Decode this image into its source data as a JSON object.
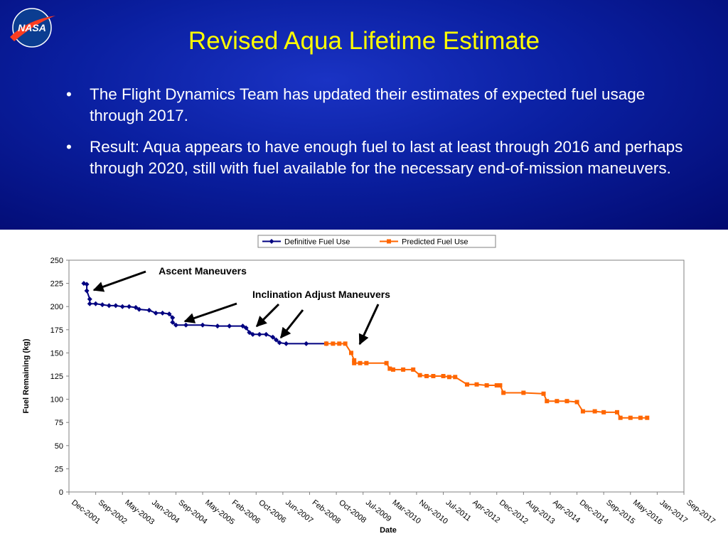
{
  "slide": {
    "title": "Revised Aqua Lifetime Estimate",
    "logo_text": "NASA",
    "bullets": [
      "The Flight Dynamics Team has updated their estimates of expected fuel usage through 2017.",
      "Result: Aqua appears to have enough fuel to last at least through 2016 and perhaps through 2020, still with fuel available for the necessary end-of-mission maneuvers."
    ]
  },
  "chart_data": {
    "type": "line",
    "xlabel": "Date",
    "ylabel": "Fuel Remaining (kg)",
    "legend": "top",
    "ylim": [
      0,
      250
    ],
    "yticks": [
      0,
      25,
      50,
      75,
      100,
      125,
      150,
      175,
      200,
      225,
      250
    ],
    "xticks": [
      "Dec-2001",
      "Sep-2002",
      "May-2003",
      "Jan-2004",
      "Sep-2004",
      "May-2005",
      "Feb-2006",
      "Oct-2006",
      "Jun-2007",
      "Feb-2008",
      "Oct-2008",
      "Jul-2009",
      "Mar-2010",
      "Nov-2010",
      "Jul-2011",
      "Apr-2012",
      "Dec-2012",
      "Aug-2013",
      "Apr-2014",
      "Dec-2014",
      "Sep-2015",
      "May-2016",
      "Jan-2017",
      "Sep-2017"
    ],
    "annotations": [
      "Ascent Maneuvers",
      "Inclination Adjust Maneuvers"
    ],
    "series": [
      {
        "name": "Definitive Fuel Use",
        "color": "#000080",
        "marker": "diamond",
        "x": [
          "May-2002",
          "Jun-2002",
          "Jun-2002",
          "Jul-2002",
          "Jul-2002",
          "Sep-2002",
          "Nov-2002",
          "Jan-2003",
          "Mar-2003",
          "May-2003",
          "Jul-2003",
          "Sep-2003",
          "Oct-2003",
          "Jan-2004",
          "Mar-2004",
          "May-2004",
          "Jul-2004",
          "Aug-2004",
          "Aug-2004",
          "Sep-2004",
          "Dec-2004",
          "May-2005",
          "Oct-2005",
          "Feb-2006",
          "Jun-2006",
          "Jul-2006",
          "Aug-2006",
          "Sep-2006",
          "Nov-2006",
          "Jan-2007",
          "Mar-2007",
          "Apr-2007",
          "May-2007",
          "Jul-2007",
          "Jan-2008",
          "Jul-2008"
        ],
        "values": [
          225,
          224,
          217,
          208,
          203,
          203,
          202,
          201,
          201,
          200,
          200,
          199,
          197,
          196,
          193,
          193,
          192,
          188,
          183,
          180,
          180,
          180,
          179,
          179,
          179,
          177,
          172,
          170,
          170,
          170,
          167,
          164,
          161,
          160,
          160,
          160
        ]
      },
      {
        "name": "Predicted Fuel Use",
        "color": "#ff6600",
        "marker": "square",
        "x": [
          "Jul-2008",
          "Sep-2008",
          "Nov-2008",
          "Jan-2009",
          "Mar-2009",
          "Apr-2009",
          "Apr-2009",
          "Jun-2009",
          "Aug-2009",
          "Feb-2010",
          "Mar-2010",
          "Apr-2010",
          "Jul-2010",
          "Oct-2010",
          "Dec-2010",
          "Feb-2011",
          "Apr-2011",
          "Jul-2011",
          "Sep-2011",
          "Nov-2011",
          "Mar-2012",
          "Jun-2012",
          "Sep-2012",
          "Dec-2012",
          "Jan-2013",
          "Feb-2013",
          "Aug-2013",
          "Feb-2014",
          "Mar-2014",
          "Jun-2014",
          "Sep-2014",
          "Dec-2014",
          "Feb-2015",
          "Jun-2015",
          "Sep-2015",
          "Jan-2016",
          "Feb-2016",
          "May-2016",
          "Aug-2016",
          "Oct-2016"
        ],
        "values": [
          160,
          160,
          160,
          160,
          150,
          142,
          139,
          139,
          139,
          139,
          133,
          132,
          132,
          132,
          126,
          125,
          125,
          125,
          124,
          124,
          116,
          116,
          115,
          115,
          115,
          107,
          107,
          106,
          98,
          98,
          98,
          97,
          87,
          87,
          86,
          86,
          80,
          80,
          80,
          80
        ]
      }
    ]
  }
}
